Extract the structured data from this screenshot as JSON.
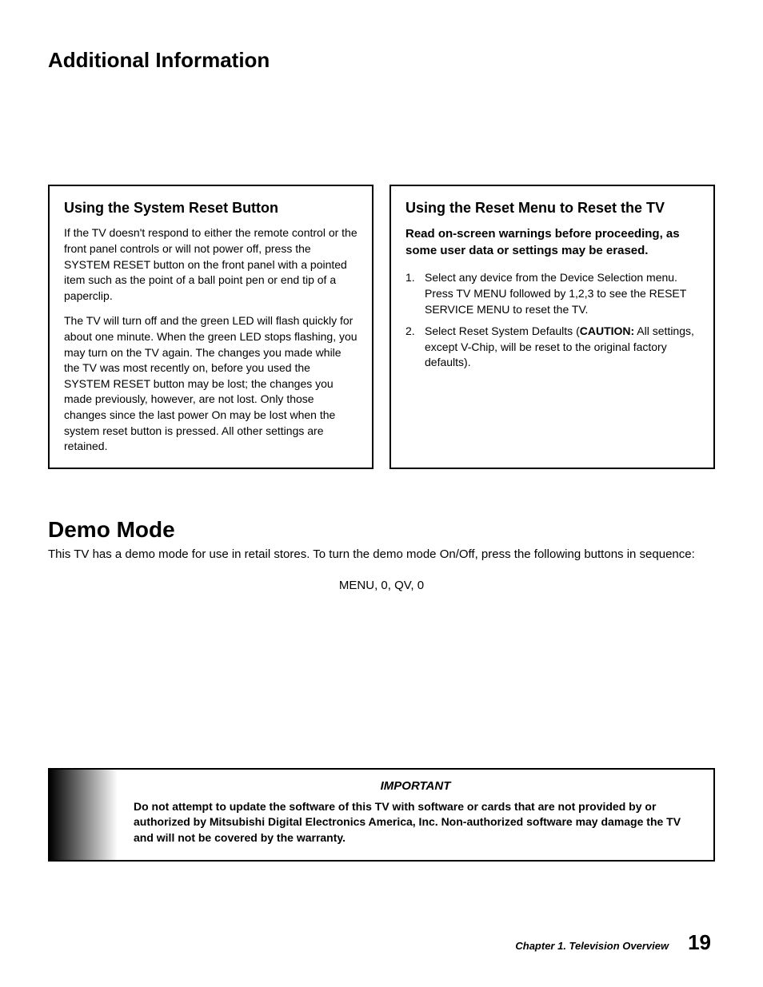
{
  "page_title": "Additional Information",
  "box1": {
    "heading": "Using the System Reset Button",
    "para1": "If the TV doesn't respond to either the remote control or the front panel controls or will not power off, press the SYSTEM RESET button on the front panel with a pointed item such as the point of a ball point pen or end tip of a paperclip.",
    "para2": "The TV will turn off and the green LED will flash quickly for about one minute.  When the green LED stops flashing, you may turn on the TV again.  The changes you made while the TV was most recently on, before you used the SYSTEM RESET button may be lost; the changes you made previously, however, are not lost.  Only those changes since the last power On may be lost when the system reset button is pressed.  All other settings are retained."
  },
  "box2": {
    "heading": "Using the Reset Menu to Reset the TV",
    "subheading": "Read on-screen warnings before proceeding, as some user data or settings may be erased.",
    "item1_num": "1.",
    "item1_text": "Select any device from the Device Selection menu.  Press TV MENU followed by 1,2,3 to see the RESET SERVICE MENU to reset the TV.",
    "item2_num": "2.",
    "item2_prefix": "Select Reset System Defaults (",
    "item2_caution": "CAUTION:",
    "item2_suffix": "  All settings, except V-Chip, will be reset to the original factory defaults)."
  },
  "demo": {
    "title": "Demo Mode",
    "para": "This TV has a demo mode for use in retail stores.  To turn the demo mode On/Off, press the following buttons in sequence:",
    "sequence": "MENU, 0, QV, 0"
  },
  "important": {
    "title": "IMPORTANT",
    "text": "Do not attempt to update the software of this TV with software or cards that are not provided by or authorized by Mitsubishi Digital Electronics America, Inc.  Non-authorized software may damage the TV and will not be covered by the warranty."
  },
  "footer": {
    "chapter": "Chapter 1. Television Overview",
    "page": "19"
  }
}
